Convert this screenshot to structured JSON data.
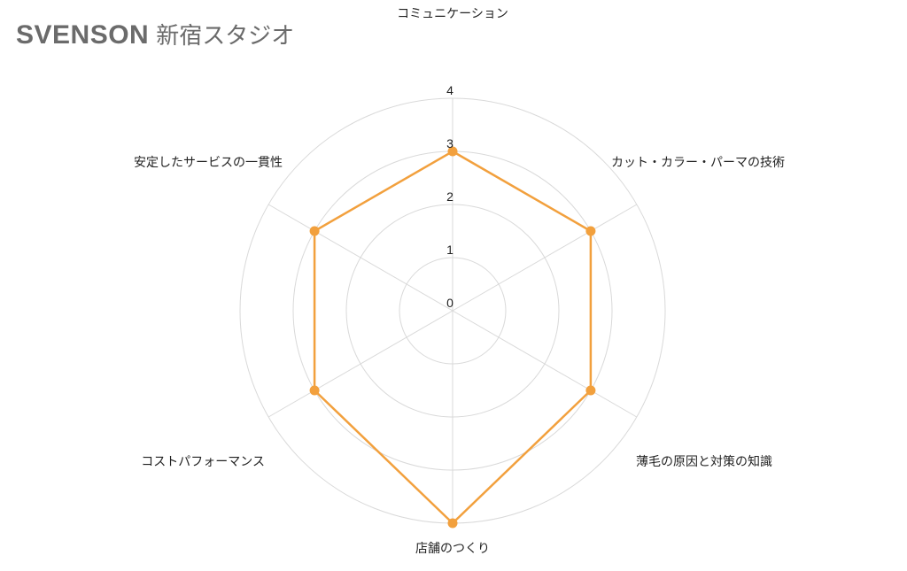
{
  "title": {
    "brand": "SVENSON",
    "studio": "新宿スタジオ"
  },
  "colors": {
    "series": "#F2A03D",
    "grid": "#d9d9d9",
    "text": "#222222",
    "title": "#6b6b6b"
  },
  "chart_data": {
    "type": "radar",
    "categories": [
      "コミュニケーション",
      "カット・カラー・パーマの技術",
      "薄毛の原因と対策の知識",
      "店舗のつくり",
      "コストパフォーマンス",
      "安定したサービスの一貫性"
    ],
    "series": [
      {
        "values": [
          3,
          3,
          3,
          4,
          3,
          3
        ]
      }
    ],
    "ticks": [
      "0",
      "1",
      "2",
      "3",
      "4"
    ],
    "rlim": [
      0,
      4
    ],
    "grid": true,
    "legend": "none"
  }
}
